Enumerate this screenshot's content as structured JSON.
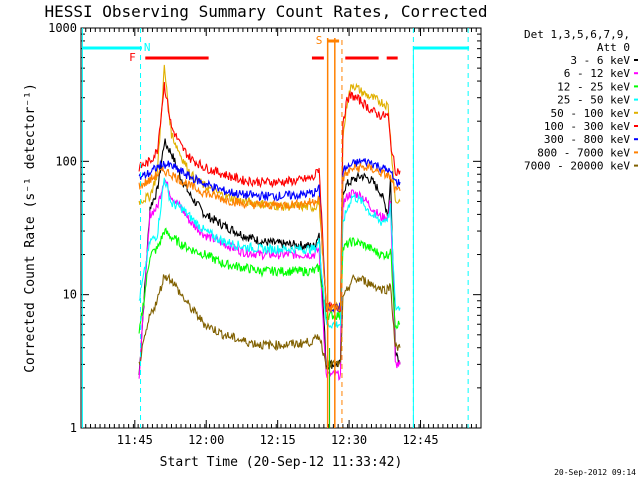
{
  "chart_data": {
    "type": "line",
    "title": "HESSI Observing Summary Count Rates, Corrected",
    "xlabel": "Start Time (20-Sep-12 11:33:42)",
    "ylabel": "Corrected Count Rate (s⁻¹ detector⁻¹)",
    "yscale": "log",
    "ylim": [
      1,
      1000
    ],
    "xlim_minutes": [
      0,
      84
    ],
    "x_unit": "minutes after 11:33:42",
    "y_ticks": [
      "1",
      "10",
      "100",
      "1000"
    ],
    "x_ticks": [
      {
        "label": "11:45",
        "t": 11.3
      },
      {
        "label": "12:00",
        "t": 26.3
      },
      {
        "label": "12:15",
        "t": 41.3
      },
      {
        "label": "12:30",
        "t": 56.3
      },
      {
        "label": "12:45",
        "t": 71.3
      },
      {
        "label": "13:00",
        "t": 86.3
      }
    ],
    "legend_header": [
      "Det 1,3,5,6,7,9,",
      "Att 0"
    ],
    "legend_position": "right",
    "timestamp": "20-Sep-2012 09:14",
    "flag_labels": {
      "N": "N",
      "F": "F",
      "S": "S"
    },
    "series": [
      {
        "name": "3 - 6 keV",
        "color": "#000000",
        "points": [
          [
            12.2,
            2.5
          ],
          [
            14.5,
            45
          ],
          [
            16,
            60
          ],
          [
            17.5,
            140
          ],
          [
            19,
            115
          ],
          [
            21,
            75
          ],
          [
            23,
            55
          ],
          [
            26,
            40
          ],
          [
            30,
            33
          ],
          [
            34,
            28
          ],
          [
            38,
            25
          ],
          [
            42,
            24
          ],
          [
            46,
            23.5
          ],
          [
            49,
            23
          ],
          [
            50,
            29
          ],
          [
            51.5,
            3
          ],
          [
            54.5,
            3
          ],
          [
            55,
            60
          ],
          [
            56,
            68
          ],
          [
            57,
            72
          ],
          [
            59,
            78
          ],
          [
            61,
            72
          ],
          [
            63,
            58
          ],
          [
            64.5,
            40
          ],
          [
            65,
            75
          ],
          [
            66,
            4
          ],
          [
            67,
            3
          ]
        ],
        "points2": [
          [
            0,
            0
          ]
        ]
      },
      {
        "name": "6 - 12 keV",
        "color": "#ff00ff",
        "points": [
          [
            12.2,
            2.5
          ],
          [
            14.5,
            40
          ],
          [
            16,
            45
          ],
          [
            17.5,
            75
          ],
          [
            19,
            55
          ],
          [
            21,
            45
          ],
          [
            23,
            35
          ],
          [
            26,
            28
          ],
          [
            30,
            24
          ],
          [
            34,
            21
          ],
          [
            38,
            20
          ],
          [
            42,
            20
          ],
          [
            46,
            20
          ],
          [
            49,
            20
          ],
          [
            50,
            22
          ],
          [
            51.5,
            2.5
          ],
          [
            54.5,
            2.5
          ],
          [
            55,
            48
          ],
          [
            56,
            55
          ],
          [
            57,
            58
          ],
          [
            59,
            55
          ],
          [
            61,
            45
          ],
          [
            63,
            38
          ],
          [
            64.5,
            38
          ],
          [
            65,
            52
          ],
          [
            66,
            3
          ],
          [
            67,
            3
          ]
        ]
      },
      {
        "name": "12 - 25 keV",
        "color": "#00ff00",
        "points": [
          [
            12.2,
            5
          ],
          [
            14.5,
            20
          ],
          [
            16,
            22
          ],
          [
            17.5,
            30
          ],
          [
            19,
            27
          ],
          [
            21,
            24
          ],
          [
            23,
            22
          ],
          [
            26,
            20
          ],
          [
            30,
            17
          ],
          [
            34,
            16
          ],
          [
            38,
            15
          ],
          [
            42,
            15
          ],
          [
            46,
            15
          ],
          [
            49,
            15
          ],
          [
            50,
            16
          ],
          [
            51.5,
            7
          ],
          [
            54.5,
            7
          ],
          [
            55,
            22
          ],
          [
            56,
            24
          ],
          [
            57,
            25
          ],
          [
            59,
            24
          ],
          [
            61,
            22
          ],
          [
            63,
            20
          ],
          [
            64.5,
            20
          ],
          [
            65,
            22
          ],
          [
            66,
            6
          ],
          [
            67,
            6
          ]
        ]
      },
      {
        "name": "25 - 50 keV",
        "color": "#00ffff",
        "points": [
          [
            12.2,
            9
          ],
          [
            14.5,
            25
          ],
          [
            16,
            28
          ],
          [
            17.5,
            75
          ],
          [
            19,
            48
          ],
          [
            21,
            45
          ],
          [
            23,
            38
          ],
          [
            26,
            30
          ],
          [
            30,
            25
          ],
          [
            34,
            23
          ],
          [
            38,
            22
          ],
          [
            42,
            22
          ],
          [
            46,
            22
          ],
          [
            49,
            22
          ],
          [
            50,
            25
          ],
          [
            51.5,
            6
          ],
          [
            54.5,
            6
          ],
          [
            55,
            35
          ],
          [
            56,
            45
          ],
          [
            57,
            55
          ],
          [
            59,
            50
          ],
          [
            61,
            40
          ],
          [
            63,
            35
          ],
          [
            64.5,
            38
          ],
          [
            65,
            45
          ],
          [
            66,
            8
          ],
          [
            67,
            8
          ]
        ]
      },
      {
        "name": "50 - 100 keV",
        "color": "#e0b000",
        "points": [
          [
            12.2,
            50
          ],
          [
            14.5,
            55
          ],
          [
            16,
            80
          ],
          [
            17.5,
            500
          ],
          [
            19,
            160
          ],
          [
            21,
            110
          ],
          [
            23,
            80
          ],
          [
            26,
            65
          ],
          [
            30,
            55
          ],
          [
            34,
            50
          ],
          [
            38,
            48
          ],
          [
            42,
            46
          ],
          [
            46,
            46
          ],
          [
            49,
            45
          ],
          [
            50,
            50
          ],
          [
            51.5,
            8
          ],
          [
            54.5,
            8
          ],
          [
            55,
            150
          ],
          [
            56,
            300
          ],
          [
            57,
            380
          ],
          [
            59,
            330
          ],
          [
            61,
            300
          ],
          [
            63,
            280
          ],
          [
            64.5,
            260
          ],
          [
            65,
            150
          ],
          [
            66,
            50
          ],
          [
            67,
            50
          ]
        ]
      },
      {
        "name": "100 - 300 keV",
        "color": "#ff0000",
        "points": [
          [
            12.2,
            90
          ],
          [
            14.5,
            100
          ],
          [
            16,
            120
          ],
          [
            17.5,
            380
          ],
          [
            19,
            180
          ],
          [
            21,
            130
          ],
          [
            23,
            105
          ],
          [
            26,
            90
          ],
          [
            30,
            80
          ],
          [
            34,
            72
          ],
          [
            38,
            70
          ],
          [
            42,
            70
          ],
          [
            46,
            72
          ],
          [
            49,
            76
          ],
          [
            50,
            90
          ],
          [
            51.5,
            8
          ],
          [
            54.5,
            8
          ],
          [
            55,
            200
          ],
          [
            56,
            300
          ],
          [
            57,
            310
          ],
          [
            59,
            280
          ],
          [
            61,
            240
          ],
          [
            63,
            220
          ],
          [
            64.5,
            220
          ],
          [
            65,
            140
          ],
          [
            66,
            85
          ],
          [
            67,
            85
          ]
        ]
      },
      {
        "name": "300 - 800 keV",
        "color": "#0000ff",
        "points": [
          [
            12.2,
            75
          ],
          [
            14.5,
            82
          ],
          [
            16,
            90
          ],
          [
            17.5,
            95
          ],
          [
            19,
            92
          ],
          [
            21,
            84
          ],
          [
            23,
            76
          ],
          [
            26,
            68
          ],
          [
            30,
            60
          ],
          [
            34,
            56
          ],
          [
            38,
            55
          ],
          [
            42,
            55
          ],
          [
            46,
            56
          ],
          [
            49,
            58
          ],
          [
            50,
            62
          ],
          [
            51.5,
            8
          ],
          [
            54.5,
            8
          ],
          [
            55,
            85
          ],
          [
            56,
            90
          ],
          [
            57,
            95
          ],
          [
            59,
            100
          ],
          [
            61,
            98
          ],
          [
            63,
            90
          ],
          [
            64.5,
            85
          ],
          [
            65,
            82
          ],
          [
            66,
            70
          ],
          [
            67,
            70
          ]
        ]
      },
      {
        "name": "800 - 7000 keV",
        "color": "#ff8000",
        "points": [
          [
            12.2,
            65
          ],
          [
            14.5,
            72
          ],
          [
            16,
            80
          ],
          [
            17.5,
            85
          ],
          [
            19,
            80
          ],
          [
            21,
            72
          ],
          [
            23,
            65
          ],
          [
            26,
            58
          ],
          [
            30,
            52
          ],
          [
            34,
            48
          ],
          [
            38,
            47
          ],
          [
            42,
            47
          ],
          [
            46,
            48
          ],
          [
            49,
            50
          ],
          [
            50,
            55
          ],
          [
            51.5,
            8
          ],
          [
            54.5,
            8
          ],
          [
            55,
            75
          ],
          [
            56,
            82
          ],
          [
            57,
            88
          ],
          [
            59,
            90
          ],
          [
            61,
            88
          ],
          [
            63,
            82
          ],
          [
            64.5,
            78
          ],
          [
            65,
            75
          ],
          [
            66,
            60
          ],
          [
            67,
            60
          ]
        ]
      },
      {
        "name": "7000 - 20000 keV",
        "color": "#806000",
        "points": [
          [
            12.2,
            3
          ],
          [
            14.5,
            7
          ],
          [
            16,
            9
          ],
          [
            17.5,
            14
          ],
          [
            19,
            13
          ],
          [
            21,
            10
          ],
          [
            23,
            8
          ],
          [
            26,
            6
          ],
          [
            30,
            5
          ],
          [
            34,
            4.5
          ],
          [
            38,
            4.2
          ],
          [
            42,
            4.2
          ],
          [
            46,
            4.3
          ],
          [
            49,
            4.5
          ],
          [
            50,
            5
          ],
          [
            51.5,
            3
          ],
          [
            54.5,
            3
          ],
          [
            55,
            9
          ],
          [
            56,
            11
          ],
          [
            57,
            13
          ],
          [
            59,
            13
          ],
          [
            61,
            12
          ],
          [
            63,
            11
          ],
          [
            64.5,
            11
          ],
          [
            65,
            12
          ],
          [
            66,
            4
          ],
          [
            67,
            4
          ]
        ]
      }
    ]
  },
  "bars": [
    {
      "flag": "N",
      "color": "#00ffff"
    },
    {
      "flag": "F",
      "color": "#ff0000"
    },
    {
      "flag": "S",
      "color": "#ff8000"
    }
  ]
}
